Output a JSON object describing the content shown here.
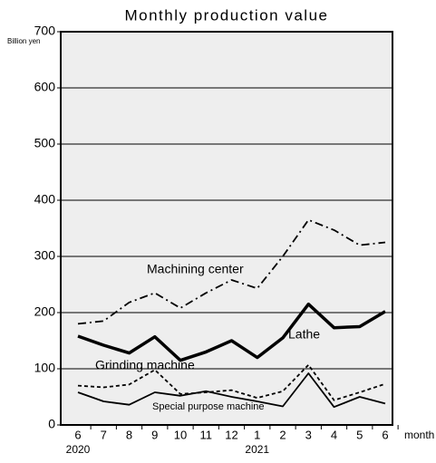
{
  "chart_data": {
    "type": "line",
    "title": "Monthly production value",
    "y_unit": "Billion yen",
    "x_label": "month",
    "categories": [
      "6",
      "7",
      "8",
      "9",
      "10",
      "11",
      "12",
      "1",
      "2",
      "3",
      "4",
      "5",
      "6"
    ],
    "years": [
      "2020",
      null,
      null,
      null,
      null,
      null,
      null,
      "2021",
      null,
      null,
      null,
      null,
      null
    ],
    "series": [
      {
        "name": "Machining center",
        "color": "#000000",
        "style": "dashdot",
        "bold": false,
        "values": [
          180,
          185,
          218,
          235,
          208,
          235,
          258,
          243,
          300,
          365,
          347,
          320,
          325
        ]
      },
      {
        "name": "Lathe",
        "color": "#000000",
        "style": "solid",
        "bold": true,
        "values": [
          158,
          142,
          128,
          157,
          115,
          130,
          150,
          120,
          155,
          215,
          173,
          175,
          202
        ]
      },
      {
        "name": "Grinding machine",
        "color": "#000000",
        "style": "dotted",
        "bold": false,
        "values": [
          70,
          67,
          72,
          98,
          55,
          58,
          62,
          48,
          60,
          107,
          44,
          58,
          73
        ]
      },
      {
        "name": "Special purpose machine",
        "color": "#000000",
        "style": "solid",
        "bold": false,
        "values": [
          58,
          42,
          36,
          58,
          52,
          60,
          50,
          42,
          33,
          92,
          32,
          50,
          38
        ]
      }
    ],
    "ylim": [
      0,
      700
    ],
    "yticks": [
      0,
      100,
      200,
      300,
      400,
      500,
      600,
      700
    ],
    "grid": true,
    "background": "#eeeeee"
  }
}
